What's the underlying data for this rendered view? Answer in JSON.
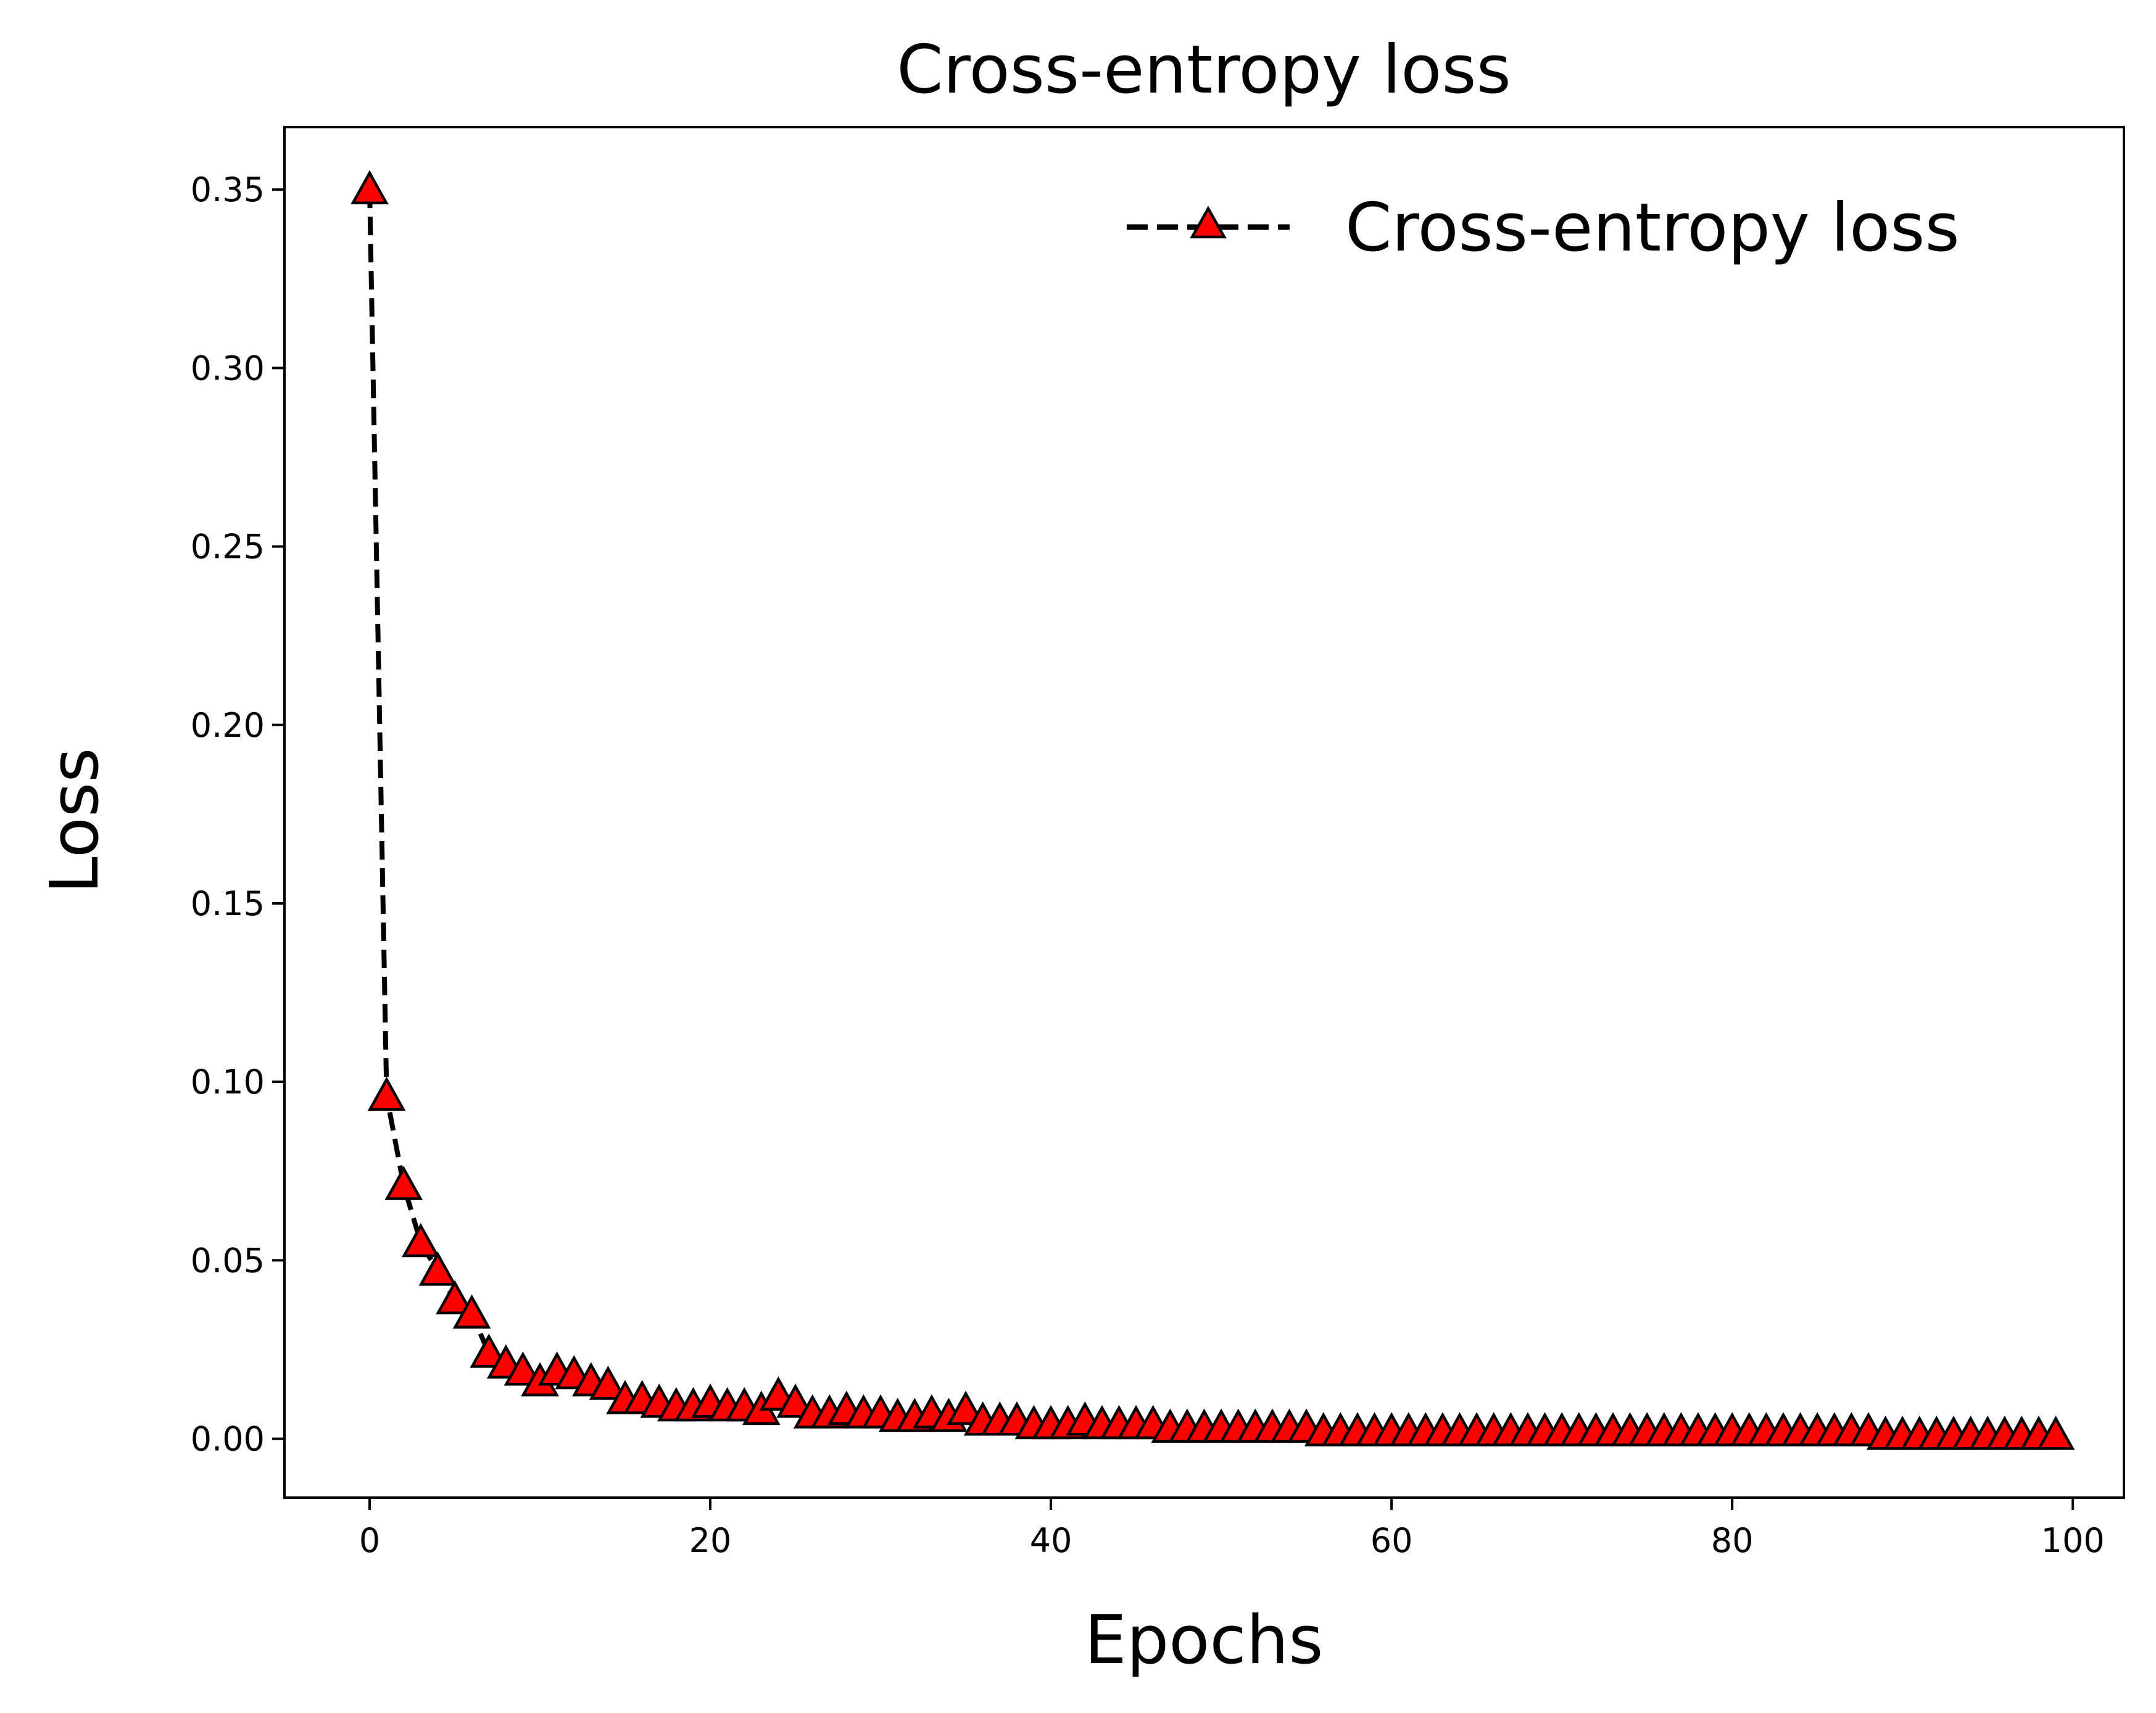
{
  "chart_data": {
    "type": "line",
    "title": "Cross-entropy loss",
    "xlabel": "Epochs",
    "ylabel": "Loss",
    "xlim": [
      -5,
      103
    ],
    "ylim": [
      -0.0165,
      0.3675
    ],
    "xticks": [
      0,
      20,
      40,
      60,
      80,
      100
    ],
    "xtick_labels": [
      "0",
      "20",
      "40",
      "60",
      "80",
      "100"
    ],
    "yticks": [
      0.0,
      0.05,
      0.1,
      0.15,
      0.2,
      0.25,
      0.3,
      0.35
    ],
    "ytick_labels": [
      "0.00",
      "0.05",
      "0.10",
      "0.15",
      "0.20",
      "0.25",
      "0.30",
      "0.35"
    ],
    "grid": false,
    "legend": {
      "position": "top-right",
      "frame": false
    },
    "series": [
      {
        "name": "Cross-entropy loss",
        "line_style": "dashed",
        "line_color": "#000000",
        "marker": "triangle-up",
        "marker_face_color": "#ff0000",
        "marker_edge_color": "#000000",
        "x": [
          0,
          1,
          2,
          3,
          4,
          5,
          6,
          7,
          8,
          9,
          10,
          11,
          12,
          13,
          14,
          15,
          16,
          17,
          18,
          19,
          20,
          21,
          22,
          23,
          24,
          25,
          26,
          27,
          28,
          29,
          30,
          31,
          32,
          33,
          34,
          35,
          36,
          37,
          38,
          39,
          40,
          41,
          42,
          43,
          44,
          45,
          46,
          47,
          48,
          49,
          50,
          51,
          52,
          53,
          54,
          55,
          56,
          57,
          58,
          59,
          60,
          61,
          62,
          63,
          64,
          65,
          66,
          67,
          68,
          69,
          70,
          71,
          72,
          73,
          74,
          75,
          76,
          77,
          78,
          79,
          80,
          81,
          82,
          83,
          84,
          85,
          86,
          87,
          88,
          89,
          90,
          91,
          92,
          93,
          94,
          95,
          96,
          97,
          98,
          99
        ],
        "values": [
          0.35,
          0.096,
          0.071,
          0.055,
          0.047,
          0.039,
          0.035,
          0.024,
          0.021,
          0.019,
          0.016,
          0.019,
          0.018,
          0.016,
          0.015,
          0.011,
          0.011,
          0.01,
          0.009,
          0.009,
          0.01,
          0.009,
          0.009,
          0.008,
          0.012,
          0.01,
          0.007,
          0.007,
          0.008,
          0.007,
          0.007,
          0.006,
          0.006,
          0.007,
          0.006,
          0.008,
          0.005,
          0.005,
          0.005,
          0.004,
          0.004,
          0.004,
          0.005,
          0.004,
          0.004,
          0.004,
          0.004,
          0.003,
          0.003,
          0.003,
          0.003,
          0.003,
          0.003,
          0.003,
          0.003,
          0.003,
          0.002,
          0.002,
          0.002,
          0.002,
          0.002,
          0.002,
          0.002,
          0.002,
          0.002,
          0.002,
          0.002,
          0.002,
          0.002,
          0.002,
          0.002,
          0.002,
          0.002,
          0.002,
          0.002,
          0.002,
          0.002,
          0.002,
          0.002,
          0.002,
          0.002,
          0.002,
          0.002,
          0.002,
          0.002,
          0.002,
          0.002,
          0.002,
          0.002,
          0.001,
          0.001,
          0.001,
          0.001,
          0.001,
          0.001,
          0.001,
          0.001,
          0.001,
          0.001,
          0.001
        ]
      }
    ]
  }
}
